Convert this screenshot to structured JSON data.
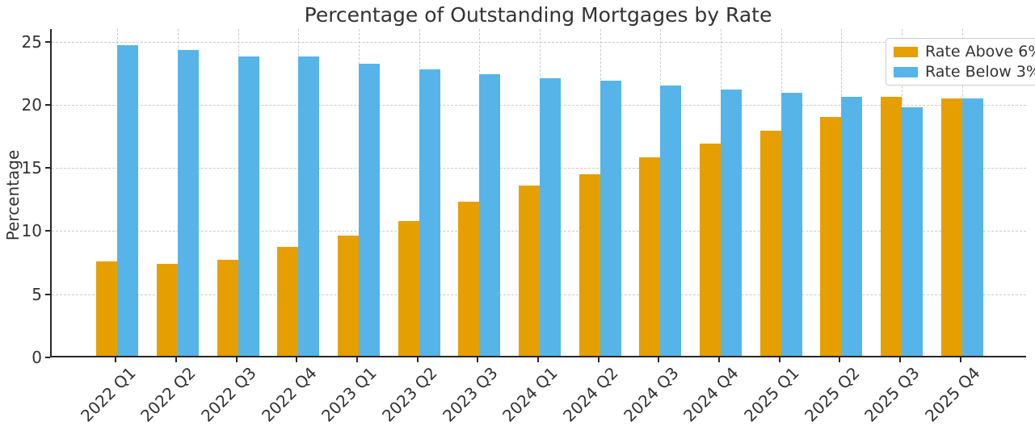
{
  "chart_data": {
    "type": "bar",
    "title": "Percentage of Outstanding Mortgages by Rate",
    "xlabel": "",
    "ylabel": "Percentage",
    "categories": [
      "2022 Q1",
      "2022 Q2",
      "2022 Q3",
      "2022 Q4",
      "2023 Q1",
      "2023 Q2",
      "2023 Q3",
      "2024 Q1",
      "2024 Q2",
      "2024 Q3",
      "2024 Q4",
      "2025 Q1",
      "2025 Q2",
      "2025 Q3",
      "2025 Q4"
    ],
    "series": [
      {
        "name": "Rate Above 6%",
        "color": "#E69F00",
        "values": [
          7.5,
          7.3,
          7.6,
          8.6,
          9.5,
          10.7,
          12.2,
          13.5,
          14.4,
          15.7,
          16.8,
          17.8,
          18.9,
          20.5,
          20.4
        ]
      },
      {
        "name": "Rate Below 3%",
        "color": "#56B4E9",
        "values": [
          24.6,
          24.2,
          23.7,
          23.7,
          23.1,
          22.7,
          22.3,
          22.0,
          21.8,
          21.4,
          21.1,
          20.8,
          20.5,
          19.7,
          20.4
        ]
      }
    ],
    "ylim": [
      0,
      26
    ],
    "yticks": [
      0,
      5,
      10,
      15,
      20,
      25
    ],
    "grid": "dashed, horizontal and vertical, behind bars",
    "legend_position": "upper right",
    "colors": {
      "axis": "#262626",
      "gridline": "#c9c9c9",
      "text": "#333333",
      "background": "#ffffff"
    }
  }
}
